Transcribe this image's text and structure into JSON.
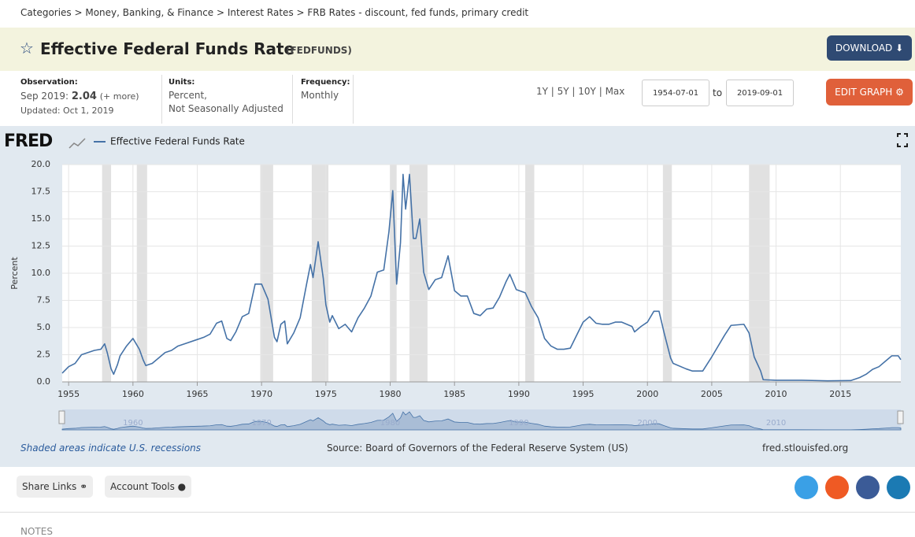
{
  "breadcrumb": "Categories > Money, Banking, & Finance > Interest Rates > FRB Rates - discount, fed funds, primary credit",
  "header": {
    "title": "Effective Federal Funds Rate",
    "series_id": "(FEDFUNDS)",
    "download": "DOWNLOAD"
  },
  "info": {
    "observation_label": "Observation:",
    "observation_date": "Sep 2019:",
    "observation_value": 2.04,
    "more": "(+ more)",
    "updated": "Updated: Oct 1, 2019",
    "units_label": "Units:",
    "units_1": "Percent,",
    "units_2": "Not Seasonally Adjusted",
    "frequency_label": "Frequency:",
    "frequency": "Monthly"
  },
  "controls": {
    "ranges": [
      "1Y",
      "5Y",
      "10Y",
      "Max"
    ],
    "start": "1954-07-01",
    "to": "to",
    "end": "2019-09-01",
    "edit": "EDIT GRAPH"
  },
  "logo": "FRED",
  "chart_data": {
    "type": "line",
    "ylabel": "Percent",
    "x": [
      1954.5,
      1955.0,
      1955.5,
      1956.0,
      1956.5,
      1957.0,
      1957.5,
      1957.8,
      1958.0,
      1958.3,
      1958.5,
      1958.8,
      1959.0,
      1959.5,
      1960.0,
      1960.5,
      1960.8,
      1961.0,
      1961.5,
      1962.0,
      1962.5,
      1963.0,
      1963.5,
      1964.0,
      1965.0,
      1965.5,
      1966.0,
      1966.5,
      1966.9,
      1967.3,
      1967.6,
      1968.0,
      1968.5,
      1969.0,
      1969.5,
      1970.0,
      1970.5,
      1971.0,
      1971.2,
      1971.5,
      1971.8,
      1972.0,
      1972.5,
      1973.0,
      1973.5,
      1973.8,
      1974.0,
      1974.4,
      1974.8,
      1975.0,
      1975.3,
      1975.5,
      1976.0,
      1976.5,
      1977.0,
      1977.5,
      1978.0,
      1978.5,
      1979.0,
      1979.5,
      1979.9,
      1980.2,
      1980.5,
      1980.8,
      1981.0,
      1981.2,
      1981.5,
      1981.8,
      1982.0,
      1982.3,
      1982.6,
      1983.0,
      1983.5,
      1984.0,
      1984.5,
      1985.0,
      1985.5,
      1986.0,
      1986.5,
      1987.0,
      1987.5,
      1988.0,
      1988.5,
      1989.0,
      1989.3,
      1989.8,
      1990.5,
      1991.0,
      1991.5,
      1992.0,
      1992.5,
      1993.0,
      1993.5,
      1994.0,
      1994.5,
      1995.0,
      1995.5,
      1996.0,
      1996.5,
      1997.0,
      1997.5,
      1998.0,
      1998.8,
      1999.0,
      1999.5,
      2000.0,
      2000.5,
      2000.9,
      2001.3,
      2001.8,
      2002.0,
      2003.0,
      2003.5,
      2004.3,
      2005.0,
      2006.0,
      2006.5,
      2007.5,
      2007.9,
      2008.3,
      2008.8,
      2009.0,
      2010.0,
      2012.0,
      2014.0,
      2015.8,
      2016.5,
      2017.0,
      2017.5,
      2018.0,
      2018.5,
      2019.0,
      2019.5,
      2019.7
    ],
    "series": [
      {
        "name": "Effective Federal Funds Rate",
        "color": "#4572a7",
        "values": [
          0.8,
          1.4,
          1.7,
          2.5,
          2.7,
          2.9,
          3.0,
          3.5,
          2.7,
          1.2,
          0.7,
          1.6,
          2.4,
          3.3,
          4.0,
          3.0,
          2.0,
          1.5,
          1.7,
          2.2,
          2.7,
          2.9,
          3.3,
          3.5,
          3.9,
          4.1,
          4.4,
          5.4,
          5.6,
          4.0,
          3.8,
          4.6,
          6.0,
          6.3,
          9.0,
          9.0,
          7.6,
          4.1,
          3.7,
          5.3,
          5.6,
          3.5,
          4.5,
          5.9,
          9.0,
          10.8,
          9.6,
          12.9,
          9.5,
          7.1,
          5.5,
          6.1,
          4.9,
          5.3,
          4.6,
          5.9,
          6.8,
          7.9,
          10.1,
          10.3,
          13.8,
          17.6,
          9.0,
          12.8,
          19.1,
          15.9,
          19.1,
          13.2,
          13.2,
          15.0,
          10.1,
          8.5,
          9.4,
          9.6,
          11.6,
          8.4,
          7.9,
          7.9,
          6.3,
          6.1,
          6.7,
          6.8,
          7.8,
          9.2,
          9.9,
          8.5,
          8.2,
          6.9,
          5.9,
          4.0,
          3.3,
          3.0,
          3.0,
          3.1,
          4.3,
          5.5,
          6.0,
          5.4,
          5.3,
          5.3,
          5.5,
          5.5,
          5.1,
          4.6,
          5.1,
          5.5,
          6.5,
          6.5,
          4.5,
          2.2,
          1.7,
          1.2,
          1.0,
          1.0,
          2.3,
          4.3,
          5.2,
          5.3,
          4.5,
          2.3,
          1.0,
          0.2,
          0.15,
          0.15,
          0.1,
          0.12,
          0.4,
          0.7,
          1.15,
          1.4,
          1.9,
          2.4,
          2.4,
          2.04
        ]
      }
    ],
    "recessions": [
      [
        1957.6,
        1958.3
      ],
      [
        1960.3,
        1961.1
      ],
      [
        1969.9,
        1970.9
      ],
      [
        1973.9,
        1975.2
      ],
      [
        1980.0,
        1980.5
      ],
      [
        1981.5,
        1982.9
      ],
      [
        1990.5,
        1991.2
      ],
      [
        2001.2,
        2001.9
      ],
      [
        2007.9,
        2009.5
      ]
    ],
    "xlim": [
      1954.5,
      2019.7
    ],
    "xticks": [
      1955,
      1960,
      1965,
      1970,
      1975,
      1980,
      1985,
      1990,
      1995,
      2000,
      2005,
      2010,
      2015
    ],
    "ylim": [
      0,
      20
    ],
    "yticks": [
      {
        "value": 0,
        "label": "0.0"
      },
      2.5,
      {
        "value": 5,
        "label": "5.0"
      },
      7.5,
      {
        "value": 10,
        "label": "10.0"
      },
      12.5,
      {
        "value": 15,
        "label": "15.0"
      },
      17.5,
      {
        "value": 20,
        "label": "20.0"
      }
    ],
    "navigator_xticks": [
      1960,
      1970,
      1980,
      1990,
      2000,
      2010
    ],
    "grid": true
  },
  "footer": {
    "recession_note": "Shaded areas indicate U.S. recessions",
    "source": "Source: Board of Governors of the Federal Reserve System (US)",
    "site": "fred.stlouisfed.org"
  },
  "tools": {
    "share": "Share Links",
    "account": "Account Tools"
  },
  "notes": "NOTES"
}
